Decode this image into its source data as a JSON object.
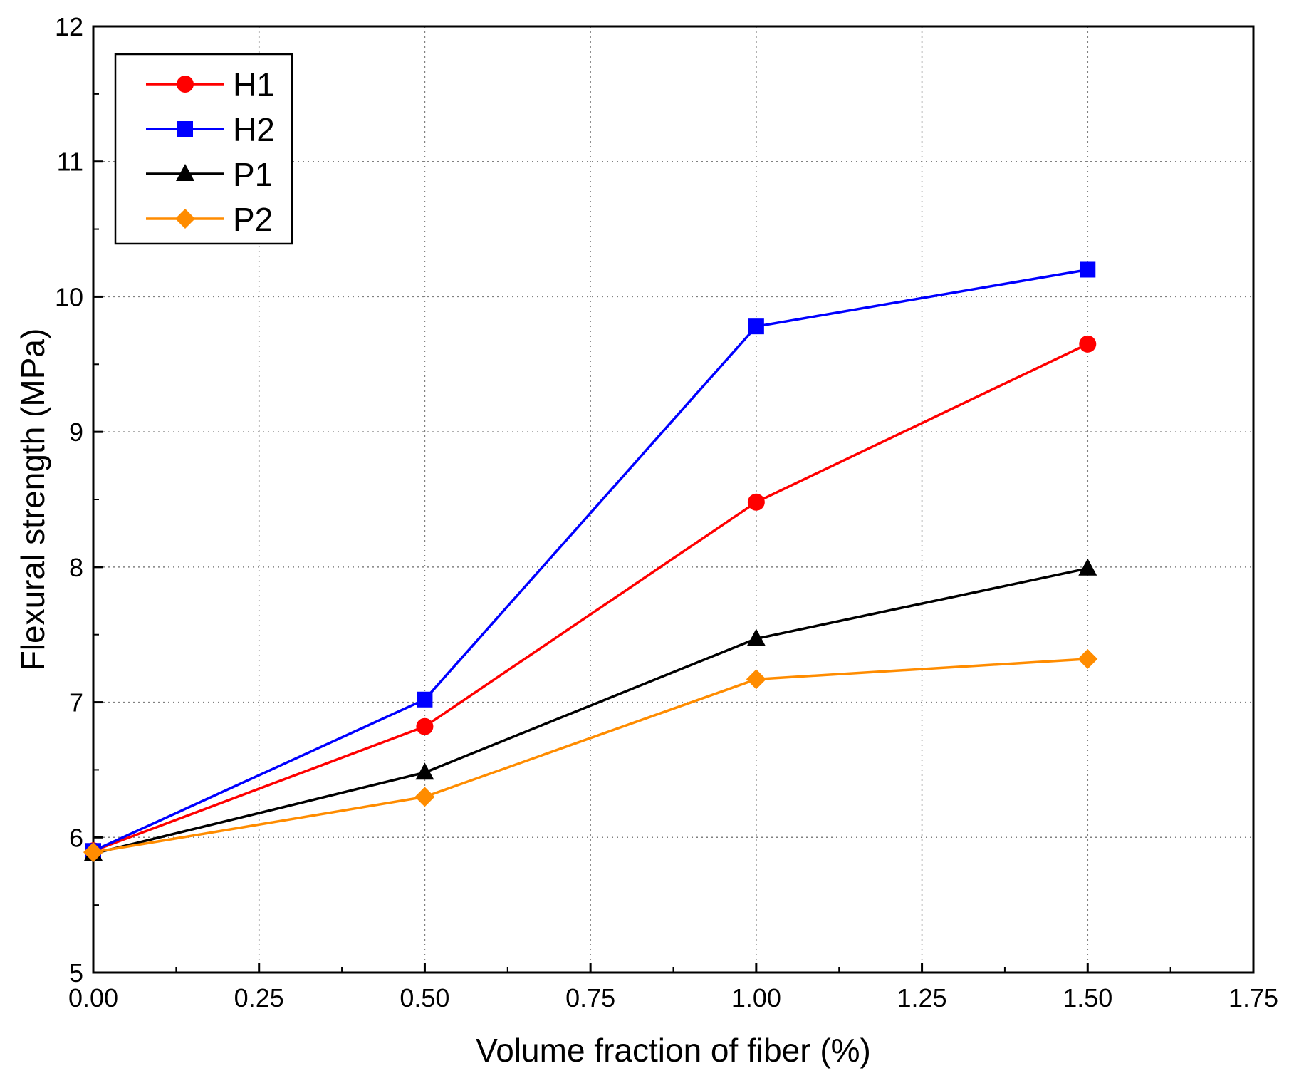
{
  "chart_data": {
    "type": "line",
    "title": "",
    "xlabel": "Volume fraction of fiber (%)",
    "ylabel": "Flexural strength (MPa)",
    "xlim": [
      0,
      1.75
    ],
    "ylim": [
      5,
      12
    ],
    "xticks": [
      0,
      0.25,
      0.5,
      0.75,
      1.0,
      1.25,
      1.5,
      1.75
    ],
    "xtick_labels": [
      "0.00",
      "0.25",
      "0.50",
      "0.75",
      "1.00",
      "1.25",
      "1.50",
      "1.75"
    ],
    "yticks": [
      5,
      6,
      7,
      8,
      9,
      10,
      11,
      12
    ],
    "ytick_labels": [
      "5",
      "6",
      "7",
      "8",
      "9",
      "10",
      "11",
      "12"
    ],
    "grid": true,
    "legend_position": "top-left",
    "x": [
      0,
      0.5,
      1.0,
      1.5
    ],
    "series": [
      {
        "name": "H1",
        "color": "#ff0000",
        "marker": "circle",
        "values": [
          5.9,
          6.82,
          8.48,
          9.65
        ]
      },
      {
        "name": "H2",
        "color": "#0000ff",
        "marker": "square",
        "values": [
          5.9,
          7.02,
          9.78,
          10.2
        ]
      },
      {
        "name": "P1",
        "color": "#000000",
        "marker": "triangle",
        "values": [
          5.88,
          6.48,
          7.47,
          7.99
        ]
      },
      {
        "name": "P2",
        "color": "#ff8c00",
        "marker": "diamond",
        "values": [
          5.89,
          6.3,
          7.17,
          7.32
        ]
      }
    ]
  }
}
